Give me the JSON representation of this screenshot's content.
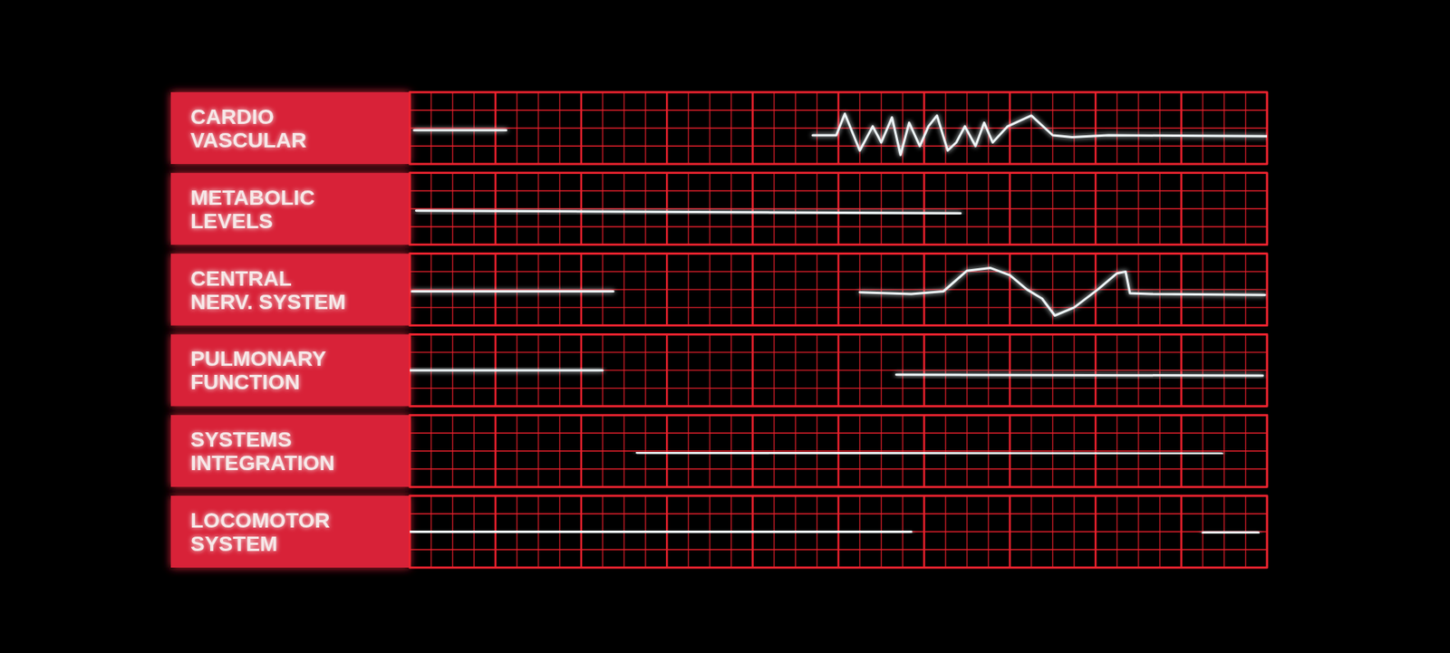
{
  "chart_data": [
    {
      "type": "line",
      "title": "CARDIO\nVASCULAR",
      "xlim": [
        0,
        40
      ],
      "ylim": [
        0,
        4
      ],
      "xticks": [
        0,
        1,
        2,
        3,
        4,
        5,
        6,
        7,
        8,
        9,
        10,
        11,
        12,
        13,
        14,
        15,
        16,
        17,
        18,
        19,
        20,
        21,
        22,
        23,
        24,
        25,
        26,
        27,
        28,
        29,
        30,
        31,
        32,
        33,
        34,
        35,
        36,
        37,
        38,
        39,
        40
      ],
      "yticks": [
        0,
        1,
        2,
        3,
        4
      ],
      "grid": true,
      "tick_labels": false,
      "x": [
        0.2,
        4.5,
        11,
        18.8,
        19.9,
        20.3,
        21.0,
        21.6,
        22.0,
        22.5,
        22.9,
        23.3,
        23.8,
        24.2,
        24.6,
        25.1,
        25.5,
        25.9,
        26.4,
        26.8,
        27.2,
        27.9,
        29.0,
        30.0,
        30.9,
        32.6,
        40
      ],
      "series": [
        {
          "color": "#eef6f8",
          "values": [
            1.88,
            1.88,
            null,
            1.6,
            1.6,
            2.8,
            0.75,
            2.1,
            1.2,
            2.6,
            0.5,
            2.3,
            1.0,
            2.1,
            2.7,
            0.75,
            1.2,
            2.1,
            1.0,
            2.3,
            1.2,
            2.1,
            2.7,
            1.6,
            1.5,
            1.6,
            1.55
          ]
        }
      ]
    },
    {
      "type": "line",
      "title": "METABOLIC\nLEVELS",
      "xlim": [
        0,
        40
      ],
      "ylim": [
        0,
        4
      ],
      "xticks": [
        0,
        1,
        2,
        3,
        4,
        5,
        6,
        7,
        8,
        9,
        10,
        11,
        12,
        13,
        14,
        15,
        16,
        17,
        18,
        19,
        20,
        21,
        22,
        23,
        24,
        25,
        26,
        27,
        28,
        29,
        30,
        31,
        32,
        33,
        34,
        35,
        36,
        37,
        38,
        39,
        40
      ],
      "yticks": [
        0,
        1,
        2,
        3,
        4
      ],
      "grid": true,
      "tick_labels": false,
      "x": [
        0.3,
        25.7
      ],
      "series": [
        {
          "color": "#eef6f8",
          "values": [
            1.9,
            1.75
          ]
        }
      ]
    },
    {
      "type": "line",
      "title": "CENTRAL\nNERV. SYSTEM",
      "xlim": [
        0,
        40
      ],
      "ylim": [
        0,
        4
      ],
      "xticks": [
        0,
        1,
        2,
        3,
        4,
        5,
        6,
        7,
        8,
        9,
        10,
        11,
        12,
        13,
        14,
        15,
        16,
        17,
        18,
        19,
        20,
        21,
        22,
        23,
        24,
        25,
        26,
        27,
        28,
        29,
        30,
        31,
        32,
        33,
        34,
        35,
        36,
        37,
        38,
        39,
        40
      ],
      "yticks": [
        0,
        1,
        2,
        3,
        4
      ],
      "grid": true,
      "tick_labels": false,
      "x": [
        0.1,
        9.5,
        15,
        21.0,
        23.4,
        24.9,
        26.0,
        27.1,
        28.0,
        28.8,
        29.5,
        30.1,
        31.0,
        32.1,
        33.0,
        33.4,
        33.6,
        34.6,
        39.9
      ],
      "series": [
        {
          "color": "#eef6f8",
          "values": [
            1.9,
            1.9,
            null,
            1.85,
            1.75,
            1.9,
            3.05,
            3.2,
            2.8,
            2.0,
            1.5,
            0.55,
            1.0,
            2.0,
            2.9,
            3.0,
            1.8,
            1.75,
            1.7
          ]
        }
      ]
    },
    {
      "type": "line",
      "title": "PULMONARY\nFUNCTION",
      "xlim": [
        0,
        40
      ],
      "ylim": [
        0,
        4
      ],
      "xticks": [
        0,
        1,
        2,
        3,
        4,
        5,
        6,
        7,
        8,
        9,
        10,
        11,
        12,
        13,
        14,
        15,
        16,
        17,
        18,
        19,
        20,
        21,
        22,
        23,
        24,
        25,
        26,
        27,
        28,
        29,
        30,
        31,
        32,
        33,
        34,
        35,
        36,
        37,
        38,
        39,
        40
      ],
      "yticks": [
        0,
        1,
        2,
        3,
        4
      ],
      "grid": true,
      "tick_labels": false,
      "x": [
        0.0,
        9.0,
        15,
        22.7,
        39.8
      ],
      "series": [
        {
          "color": "#eef6f8",
          "values": [
            2.0,
            2.0,
            null,
            1.75,
            1.7
          ]
        }
      ]
    },
    {
      "type": "line",
      "title": "SYSTEMS\nINTEGRATION",
      "xlim": [
        0,
        40
      ],
      "ylim": [
        0,
        4
      ],
      "xticks": [
        0,
        1,
        2,
        3,
        4,
        5,
        6,
        7,
        8,
        9,
        10,
        11,
        12,
        13,
        14,
        15,
        16,
        17,
        18,
        19,
        20,
        21,
        22,
        23,
        24,
        25,
        26,
        27,
        28,
        29,
        30,
        31,
        32,
        33,
        34,
        35,
        36,
        37,
        38,
        39,
        40
      ],
      "yticks": [
        0,
        1,
        2,
        3,
        4
      ],
      "grid": true,
      "tick_labels": false,
      "x": [
        10.6,
        37.9
      ],
      "series": [
        {
          "color": "#eef6f8",
          "values": [
            1.9,
            1.85
          ]
        }
      ]
    },
    {
      "type": "line",
      "title": "LOCOMOTOR\nSYSTEM",
      "xlim": [
        0,
        40
      ],
      "ylim": [
        0,
        4
      ],
      "xticks": [
        0,
        1,
        2,
        3,
        4,
        5,
        6,
        7,
        8,
        9,
        10,
        11,
        12,
        13,
        14,
        15,
        16,
        17,
        18,
        19,
        20,
        21,
        22,
        23,
        24,
        25,
        26,
        27,
        28,
        29,
        30,
        31,
        32,
        33,
        34,
        35,
        36,
        37,
        38,
        39,
        40
      ],
      "yticks": [
        0,
        1,
        2,
        3,
        4
      ],
      "grid": true,
      "tick_labels": false,
      "x": [
        0.0,
        23.4,
        30,
        37.0,
        39.6
      ],
      "series": [
        {
          "color": "#eef6f8",
          "values": [
            2.0,
            2.0,
            null,
            1.95,
            1.95
          ]
        }
      ]
    }
  ]
}
